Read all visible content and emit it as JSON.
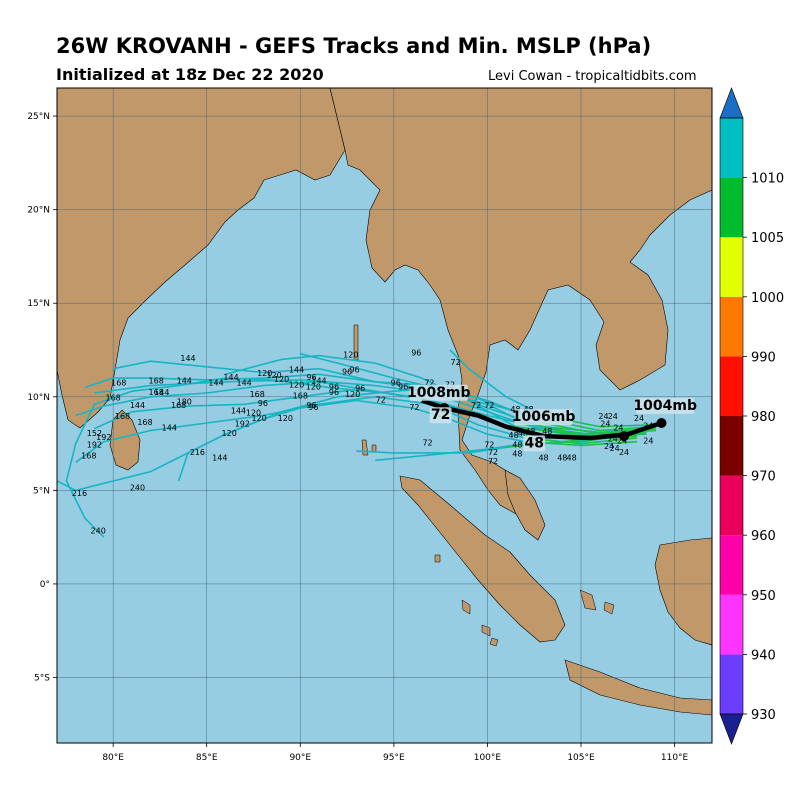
{
  "header": {
    "title": "26W KROVANH - GEFS Tracks and Min. MSLP (hPa)",
    "subtitle": "Initialized at 18z Dec 22 2020",
    "credit": "Levi Cowan - tropicaltidbits.com"
  },
  "map": {
    "lon_range": [
      77,
      112
    ],
    "lat_range": [
      -8.5,
      26.5
    ],
    "lon_ticks": [
      80,
      85,
      90,
      95,
      100,
      105,
      110
    ],
    "lat_ticks": [
      25,
      20,
      15,
      10,
      5,
      0,
      -5
    ],
    "lon_tick_labels": [
      "80°E",
      "85°E",
      "90°E",
      "95°E",
      "100°E",
      "105°E",
      "110°E"
    ],
    "lat_tick_labels": [
      "25°N",
      "20°N",
      "15°N",
      "10°N",
      "5°N",
      "0°",
      "5°S"
    ],
    "colors": {
      "ocean": "#96cde3",
      "land": "#c0986a",
      "grid": "#4a6b7a",
      "track": "#17b5c2",
      "track_green": "#1fc436",
      "mean": "#000000",
      "label_bg": "#cfe3ec"
    }
  },
  "mean_track": {
    "points": [
      [
        109.3,
        8.6
      ],
      [
        107.5,
        8.0
      ],
      [
        105.5,
        7.8
      ],
      [
        103,
        7.9
      ],
      [
        101,
        8.4
      ],
      [
        99.5,
        9.0
      ],
      [
        97.7,
        9.4
      ],
      [
        96.5,
        9.8
      ]
    ],
    "labels": [
      {
        "text": "1004mb",
        "lon": 109.5,
        "lat": 9.3
      },
      {
        "text": "1006mb",
        "lon": 103,
        "lat": 8.7
      },
      {
        "text": "48",
        "lon": 102.5,
        "lat": 7.3
      },
      {
        "text": "1008mb",
        "lon": 97.4,
        "lat": 10.0
      },
      {
        "text": "72",
        "lon": 97.5,
        "lat": 8.8
      }
    ]
  },
  "hour_labels": [
    {
      "t": "144",
      "lon": 84,
      "lat": 11.9
    },
    {
      "t": "144",
      "lon": 83.8,
      "lat": 10.7
    },
    {
      "t": "144",
      "lon": 85.5,
      "lat": 10.6
    },
    {
      "t": "144",
      "lon": 86.3,
      "lat": 10.9
    },
    {
      "t": "144",
      "lon": 87,
      "lat": 10.6
    },
    {
      "t": "168",
      "lon": 80.3,
      "lat": 10.6
    },
    {
      "t": "168",
      "lon": 82.3,
      "lat": 10.7
    },
    {
      "t": "168",
      "lon": 82.3,
      "lat": 10.1
    },
    {
      "t": "144",
      "lon": 82.6,
      "lat": 10.1
    },
    {
      "t": "168",
      "lon": 80,
      "lat": 9.8
    },
    {
      "t": "144",
      "lon": 81.3,
      "lat": 9.4
    },
    {
      "t": "180",
      "lon": 83.8,
      "lat": 9.6
    },
    {
      "t": "168",
      "lon": 83.5,
      "lat": 9.4
    },
    {
      "t": "168",
      "lon": 80.5,
      "lat": 8.8
    },
    {
      "t": "168",
      "lon": 81.7,
      "lat": 8.5
    },
    {
      "t": "144",
      "lon": 83,
      "lat": 8.2
    },
    {
      "t": "152",
      "lon": 79,
      "lat": 7.9
    },
    {
      "t": "192",
      "lon": 79.5,
      "lat": 7.7
    },
    {
      "t": "192",
      "lon": 79,
      "lat": 7.3
    },
    {
      "t": "168",
      "lon": 78.7,
      "lat": 6.7
    },
    {
      "t": "216",
      "lon": 84.5,
      "lat": 6.9
    },
    {
      "t": "144",
      "lon": 85.7,
      "lat": 6.6
    },
    {
      "t": "120",
      "lon": 86.2,
      "lat": 7.9
    },
    {
      "t": "144",
      "lon": 86.7,
      "lat": 9.1
    },
    {
      "t": "192",
      "lon": 86.9,
      "lat": 8.4
    },
    {
      "t": "120",
      "lon": 87.5,
      "lat": 9.0
    },
    {
      "t": "120",
      "lon": 87.8,
      "lat": 8.7
    },
    {
      "t": "120",
      "lon": 89.2,
      "lat": 8.7
    },
    {
      "t": "96",
      "lon": 88,
      "lat": 9.5
    },
    {
      "t": "168",
      "lon": 87.7,
      "lat": 10.0
    },
    {
      "t": "168",
      "lon": 90,
      "lat": 9.9
    },
    {
      "t": "120",
      "lon": 89,
      "lat": 10.8
    },
    {
      "t": "120",
      "lon": 88.1,
      "lat": 11.1
    },
    {
      "t": "120",
      "lon": 88.6,
      "lat": 11.0
    },
    {
      "t": "120",
      "lon": 89.8,
      "lat": 10.5
    },
    {
      "t": "144",
      "lon": 89.8,
      "lat": 11.3
    },
    {
      "t": "96",
      "lon": 90.6,
      "lat": 10.9
    },
    {
      "t": "144",
      "lon": 91.0,
      "lat": 10.7
    },
    {
      "t": "120",
      "lon": 90.7,
      "lat": 10.4
    },
    {
      "t": "96",
      "lon": 91.8,
      "lat": 10.4
    },
    {
      "t": "96",
      "lon": 91.8,
      "lat": 10.1
    },
    {
      "t": "96",
      "lon": 92.5,
      "lat": 11.2
    },
    {
      "t": "96",
      "lon": 92.9,
      "lat": 11.3
    },
    {
      "t": "120",
      "lon": 92.7,
      "lat": 12.1
    },
    {
      "t": "96",
      "lon": 96.2,
      "lat": 12.2
    },
    {
      "t": "96",
      "lon": 90.6,
      "lat": 9.4
    },
    {
      "t": "96",
      "lon": 90.7,
      "lat": 9.3
    },
    {
      "t": "120",
      "lon": 92.8,
      "lat": 10.0
    },
    {
      "t": "96",
      "lon": 93.2,
      "lat": 10.3
    },
    {
      "t": "72",
      "lon": 94.3,
      "lat": 9.7
    },
    {
      "t": "96",
      "lon": 95.1,
      "lat": 10.6
    },
    {
      "t": "96",
      "lon": 95.5,
      "lat": 10.4
    },
    {
      "t": "72",
      "lon": 96.1,
      "lat": 10.1
    },
    {
      "t": "72",
      "lon": 96.9,
      "lat": 10.6
    },
    {
      "t": "72",
      "lon": 96.1,
      "lat": 9.3
    },
    {
      "t": "72",
      "lon": 98.3,
      "lat": 11.7
    },
    {
      "t": "72",
      "lon": 98,
      "lat": 10.5
    },
    {
      "t": "72",
      "lon": 99.4,
      "lat": 9.4
    },
    {
      "t": "72",
      "lon": 100.1,
      "lat": 9.4
    },
    {
      "t": "72",
      "lon": 96.8,
      "lat": 7.4
    },
    {
      "t": "72",
      "lon": 100.1,
      "lat": 7.3
    },
    {
      "t": "72",
      "lon": 100.3,
      "lat": 6.9
    },
    {
      "t": "72",
      "lon": 100.3,
      "lat": 6.4
    },
    {
      "t": "48",
      "lon": 101.5,
      "lat": 9.2
    },
    {
      "t": "48",
      "lon": 102.2,
      "lat": 9.2
    },
    {
      "t": "48",
      "lon": 103.2,
      "lat": 9.0
    },
    {
      "t": "48",
      "lon": 101.4,
      "lat": 7.8
    },
    {
      "t": "48",
      "lon": 101.6,
      "lat": 7.3
    },
    {
      "t": "48",
      "lon": 101.6,
      "lat": 6.8
    },
    {
      "t": "48",
      "lon": 103,
      "lat": 6.6
    },
    {
      "t": "48",
      "lon": 104,
      "lat": 6.6
    },
    {
      "t": "48",
      "lon": 104.5,
      "lat": 6.6
    },
    {
      "t": "48",
      "lon": 103.2,
      "lat": 8.0
    },
    {
      "t": "48",
      "lon": 102.3,
      "lat": 8.0
    },
    {
      "t": "48",
      "lon": 101.9,
      "lat": 7.9
    },
    {
      "t": "24",
      "lon": 106.2,
      "lat": 8.8
    },
    {
      "t": "24",
      "lon": 106.7,
      "lat": 8.8
    },
    {
      "t": "24",
      "lon": 108.1,
      "lat": 8.7
    },
    {
      "t": "24",
      "lon": 108.6,
      "lat": 8.3
    },
    {
      "t": "24",
      "lon": 106.3,
      "lat": 8.4
    },
    {
      "t": "24",
      "lon": 107,
      "lat": 8.2
    },
    {
      "t": "24",
      "lon": 106.7,
      "lat": 7.6
    },
    {
      "t": "24",
      "lon": 107.2,
      "lat": 7.5
    },
    {
      "t": "24",
      "lon": 106.8,
      "lat": 7.1
    },
    {
      "t": "24",
      "lon": 107.3,
      "lat": 6.9
    },
    {
      "t": "24",
      "lon": 108.6,
      "lat": 7.5
    },
    {
      "t": "24",
      "lon": 106.5,
      "lat": 7.2
    },
    {
      "t": "216",
      "lon": 78.2,
      "lat": 4.7
    },
    {
      "t": "240",
      "lon": 81.3,
      "lat": 5.0
    },
    {
      "t": "240",
      "lon": 79.2,
      "lat": 2.7
    }
  ],
  "colorbar": {
    "levels": [
      930,
      940,
      950,
      960,
      970,
      980,
      990,
      1000,
      1005,
      1010
    ],
    "labels": [
      "930",
      "940",
      "950",
      "960",
      "970",
      "980",
      "990",
      "1000",
      "1005",
      "1010"
    ],
    "colors": [
      "#6b3dff",
      "#ff34ff",
      "#ff00a8",
      "#e8005a",
      "#7a0000",
      "#ff1000",
      "#ff7800",
      "#e2ff00",
      "#00bb2c",
      "#00bfc2"
    ],
    "under_color": "#1a2090",
    "over_color": "#1a6fc4"
  }
}
